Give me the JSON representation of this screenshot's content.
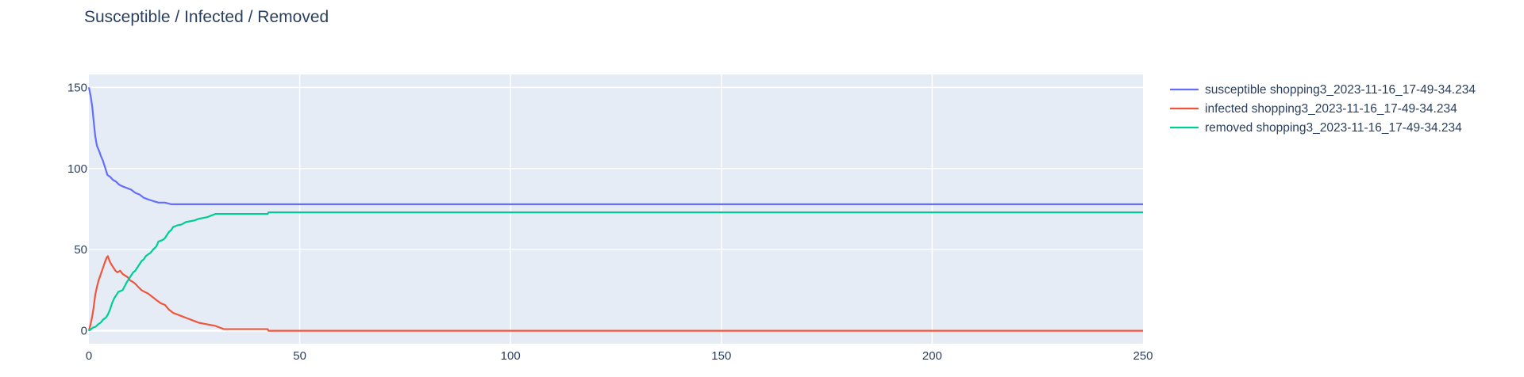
{
  "chart_data": {
    "type": "line",
    "title": "Susceptible / Infected / Removed",
    "xlabel": "",
    "ylabel": "",
    "xlim": [
      0,
      250
    ],
    "ylim": [
      -8,
      158
    ],
    "x_ticks": [
      0,
      50,
      100,
      150,
      200,
      250
    ],
    "y_ticks": [
      0,
      50,
      100,
      150
    ],
    "grid": true,
    "legend_position": "right",
    "series": [
      {
        "name": "susceptible shopping3_2023-11-16_17-49-34.234",
        "color": "#636efa",
        "points": [
          [
            0,
            150
          ],
          [
            0.4,
            145
          ],
          [
            0.8,
            138
          ],
          [
            1.1,
            130
          ],
          [
            1.5,
            120
          ],
          [
            1.9,
            114
          ],
          [
            2.4,
            111
          ],
          [
            2.8,
            108
          ],
          [
            3.3,
            105
          ],
          [
            3.8,
            101
          ],
          [
            4.4,
            96
          ],
          [
            5,
            95
          ],
          [
            5.7,
            93
          ],
          [
            6.4,
            92
          ],
          [
            7.2,
            90
          ],
          [
            8,
            89
          ],
          [
            9,
            88
          ],
          [
            10,
            87
          ],
          [
            11,
            85
          ],
          [
            12,
            84
          ],
          [
            13,
            82
          ],
          [
            14,
            81
          ],
          [
            15.2,
            80
          ],
          [
            16.5,
            79
          ],
          [
            18,
            79
          ],
          [
            19.5,
            78
          ],
          [
            22,
            78
          ],
          [
            30,
            78
          ],
          [
            100,
            78
          ],
          [
            250,
            78
          ]
        ]
      },
      {
        "name": "infected shopping3_2023-11-16_17-49-34.234",
        "color": "#ef553b",
        "points": [
          [
            0,
            0
          ],
          [
            0.4,
            4
          ],
          [
            0.8,
            9
          ],
          [
            1.1,
            14
          ],
          [
            1.5,
            22
          ],
          [
            1.9,
            27
          ],
          [
            2.3,
            31
          ],
          [
            2.7,
            34
          ],
          [
            3.1,
            37
          ],
          [
            3.5,
            40
          ],
          [
            3.9,
            43
          ],
          [
            4.2,
            45
          ],
          [
            4.5,
            46
          ],
          [
            4.9,
            43
          ],
          [
            5.3,
            41
          ],
          [
            5.8,
            39
          ],
          [
            6.3,
            37
          ],
          [
            6.8,
            36
          ],
          [
            7.4,
            37
          ],
          [
            8,
            35
          ],
          [
            8.6,
            34
          ],
          [
            9.2,
            33
          ],
          [
            9.8,
            31
          ],
          [
            10.5,
            30
          ],
          [
            11,
            29
          ],
          [
            11.7,
            27
          ],
          [
            12.5,
            25
          ],
          [
            13.2,
            24
          ],
          [
            14,
            23
          ],
          [
            15,
            21
          ],
          [
            16,
            19
          ],
          [
            17,
            17
          ],
          [
            18,
            16
          ],
          [
            19,
            13
          ],
          [
            20,
            11
          ],
          [
            21,
            10
          ],
          [
            22,
            9
          ],
          [
            23,
            8
          ],
          [
            24,
            7
          ],
          [
            25,
            6
          ],
          [
            26,
            5
          ],
          [
            27,
            4.5
          ],
          [
            28,
            4
          ],
          [
            29,
            3.5
          ],
          [
            30,
            3
          ],
          [
            31,
            2
          ],
          [
            32,
            1
          ],
          [
            36,
            1
          ],
          [
            42.4,
            1
          ],
          [
            42.6,
            0
          ],
          [
            100,
            0
          ],
          [
            250,
            0
          ]
        ]
      },
      {
        "name": "removed shopping3_2023-11-16_17-49-34.234",
        "color": "#00cc96",
        "points": [
          [
            0,
            0
          ],
          [
            0.5,
            1
          ],
          [
            1,
            2
          ],
          [
            1.6,
            2.5
          ],
          [
            2.2,
            4
          ],
          [
            2.8,
            5
          ],
          [
            3.4,
            7
          ],
          [
            4,
            8
          ],
          [
            4.5,
            10
          ],
          [
            5,
            13
          ],
          [
            5.5,
            17
          ],
          [
            6,
            20
          ],
          [
            6.5,
            22
          ],
          [
            7,
            24
          ],
          [
            8,
            25
          ],
          [
            8.6,
            28
          ],
          [
            9,
            30
          ],
          [
            9.5,
            32
          ],
          [
            10,
            34
          ],
          [
            10.5,
            36
          ],
          [
            11,
            37
          ],
          [
            11.5,
            39
          ],
          [
            12,
            41
          ],
          [
            12.5,
            43
          ],
          [
            13,
            44
          ],
          [
            13.5,
            46
          ],
          [
            14,
            47
          ],
          [
            14.6,
            48
          ],
          [
            15.2,
            50
          ],
          [
            16,
            52
          ],
          [
            16.5,
            55
          ],
          [
            17.5,
            56
          ],
          [
            18,
            57
          ],
          [
            18.5,
            59
          ],
          [
            19,
            61
          ],
          [
            19.5,
            62
          ],
          [
            20,
            64
          ],
          [
            21,
            65
          ],
          [
            22,
            65.5
          ],
          [
            23,
            67
          ],
          [
            24,
            67.5
          ],
          [
            25,
            68
          ],
          [
            26,
            69
          ],
          [
            27,
            69.5
          ],
          [
            28,
            70
          ],
          [
            29,
            71
          ],
          [
            30,
            72
          ],
          [
            33,
            72
          ],
          [
            42.4,
            72
          ],
          [
            42.6,
            73
          ],
          [
            100,
            73
          ],
          [
            250,
            73
          ]
        ]
      }
    ]
  }
}
